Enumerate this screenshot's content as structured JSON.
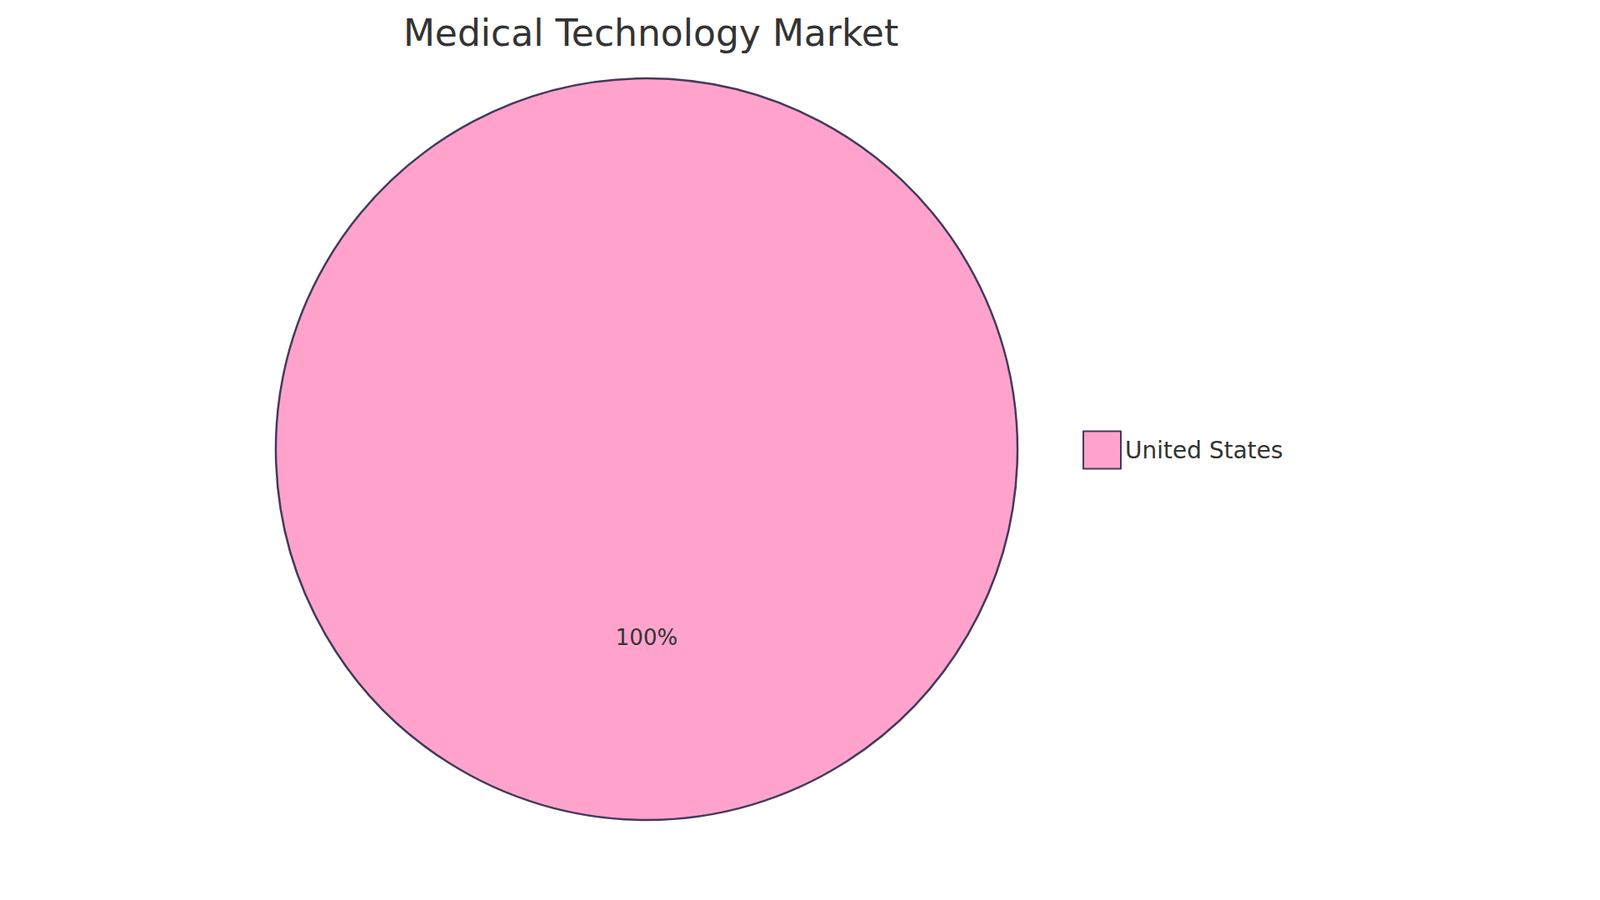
{
  "chart_data": {
    "type": "pie",
    "title": "Medical Technology Market",
    "categories": [
      "United States"
    ],
    "values": [
      100
    ],
    "value_labels": [
      "100%"
    ],
    "colors": [
      "#ffa3cd"
    ],
    "data_labels": true,
    "legend": "right"
  }
}
